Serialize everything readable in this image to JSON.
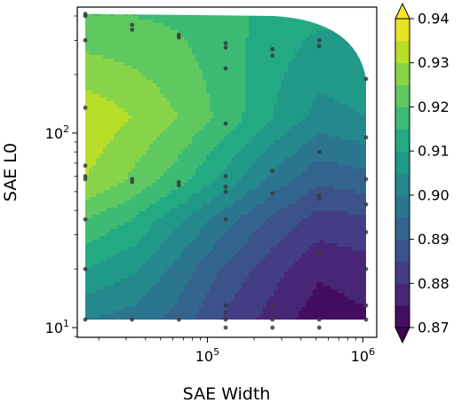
{
  "chart_data": {
    "type": "heatmap",
    "subtype": "filled-contour",
    "xlabel": "SAE Width",
    "ylabel": "SAE L0",
    "x_scale": "log",
    "y_scale": "log",
    "xlim": [
      16384,
      1048576
    ],
    "ylim": [
      11,
      400
    ],
    "x_ticks": [
      {
        "value": 100000,
        "label": "10",
        "exp": "5"
      },
      {
        "value": 1000000,
        "label": "10",
        "exp": "6"
      }
    ],
    "y_ticks": [
      {
        "value": 10,
        "label": "10",
        "exp": "1"
      },
      {
        "value": 100,
        "label": "10",
        "exp": "2"
      }
    ],
    "colormap": "viridis",
    "colorbar": {
      "vmin": 0.87,
      "vmax": 0.94,
      "levels": [
        0.87,
        0.875,
        0.88,
        0.885,
        0.89,
        0.895,
        0.9,
        0.905,
        0.91,
        0.915,
        0.92,
        0.925,
        0.93,
        0.935,
        0.94
      ],
      "ticks": [
        "0.87",
        "0.88",
        "0.89",
        "0.90",
        "0.91",
        "0.92",
        "0.93",
        "0.94"
      ],
      "extend": "both"
    },
    "grid": {
      "widths": [
        16384,
        32768,
        65536,
        131072,
        262144,
        524288,
        1048576
      ],
      "l0": [
        11,
        20,
        36,
        57,
        120,
        400
      ],
      "z": [
        [
          0.9,
          0.898,
          0.893,
          0.884,
          0.878,
          0.872,
          0.874
        ],
        [
          0.91,
          0.906,
          0.898,
          0.889,
          0.882,
          0.876,
          0.878
        ],
        [
          0.92,
          0.915,
          0.906,
          0.897,
          0.889,
          0.883,
          0.884
        ],
        [
          0.93,
          0.924,
          0.917,
          0.908,
          0.898,
          0.891,
          0.893
        ],
        [
          0.934,
          0.93,
          0.925,
          0.918,
          0.91,
          0.903,
          0.905
        ],
        [
          0.92,
          0.92,
          0.919,
          0.917,
          0.913,
          0.911,
          0.911
        ]
      ]
    },
    "points": [
      [
        16384,
        11
      ],
      [
        16384,
        20
      ],
      [
        16384,
        36
      ],
      [
        16384,
        58
      ],
      [
        16384,
        60
      ],
      [
        16384,
        68
      ],
      [
        16384,
        135
      ],
      [
        16384,
        300
      ],
      [
        16384,
        400
      ],
      [
        16384,
        410
      ],
      [
        32768,
        11
      ],
      [
        32768,
        56
      ],
      [
        32768,
        58
      ],
      [
        32768,
        340
      ],
      [
        32768,
        360
      ],
      [
        65536,
        11
      ],
      [
        65536,
        54
      ],
      [
        65536,
        56
      ],
      [
        65536,
        310
      ],
      [
        65536,
        320
      ],
      [
        131072,
        10
      ],
      [
        131072,
        11
      ],
      [
        131072,
        12
      ],
      [
        131072,
        13
      ],
      [
        131072,
        36
      ],
      [
        131072,
        50
      ],
      [
        131072,
        53
      ],
      [
        131072,
        60
      ],
      [
        131072,
        112
      ],
      [
        131072,
        215
      ],
      [
        131072,
        275
      ],
      [
        131072,
        290
      ],
      [
        262144,
        10
      ],
      [
        262144,
        11
      ],
      [
        262144,
        13
      ],
      [
        262144,
        49
      ],
      [
        262144,
        64
      ],
      [
        262144,
        250
      ],
      [
        262144,
        270
      ],
      [
        524288,
        10
      ],
      [
        524288,
        11
      ],
      [
        524288,
        24
      ],
      [
        524288,
        46
      ],
      [
        524288,
        48
      ],
      [
        524288,
        80
      ],
      [
        524288,
        280
      ],
      [
        524288,
        300
      ],
      [
        1048576,
        11
      ],
      [
        1048576,
        13
      ],
      [
        1048576,
        20
      ],
      [
        1048576,
        31
      ],
      [
        1048576,
        43
      ],
      [
        1048576,
        58
      ],
      [
        1048576,
        95
      ],
      [
        1048576,
        190
      ]
    ]
  }
}
